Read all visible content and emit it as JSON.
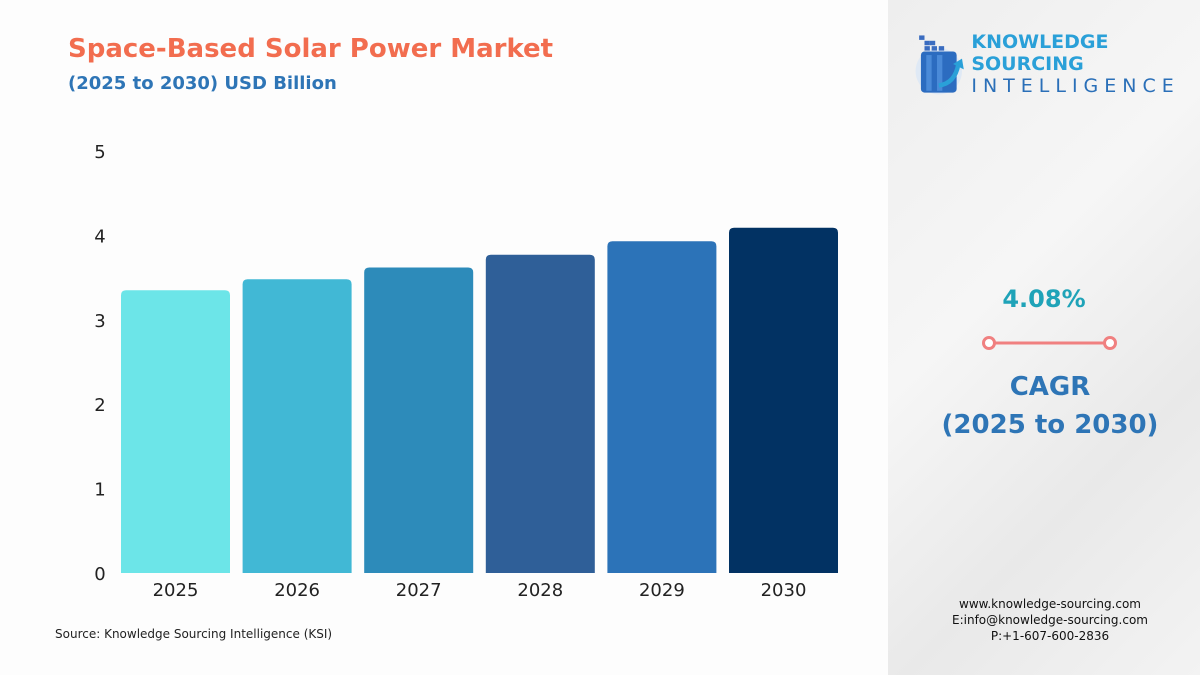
{
  "header": {
    "title": "Space-Based Solar Power Market",
    "subtitle": "(2025 to 2030) USD Billion"
  },
  "chart_data": {
    "type": "bar",
    "categories": [
      "2025",
      "2026",
      "2027",
      "2028",
      "2029",
      "2030"
    ],
    "values": [
      3.35,
      3.48,
      3.62,
      3.77,
      3.93,
      4.09
    ],
    "ylim": [
      0,
      5
    ],
    "yticks": [
      "0",
      "1",
      "2",
      "3",
      "4",
      "5"
    ],
    "grid": false,
    "colors": [
      "#6ce5e8",
      "#41b8d5",
      "#2d8bba",
      "#2f5f98",
      "#2c73b8",
      "#023263"
    ]
  },
  "source": "Source: Knowledge Sourcing Intelligence (KSI)",
  "logo": {
    "line1": "KNOWLEDGE SOURCING",
    "line2": "INTELLIGENCE"
  },
  "cagr": {
    "value": "4.08%",
    "label": "CAGR",
    "period": "(2025 to 2030)",
    "line_color": "#f08080"
  },
  "contact": {
    "web": "www.knowledge-sourcing.com",
    "email": "E:info@knowledge-sourcing.com",
    "phone": "P:+1-607-600-2836"
  }
}
